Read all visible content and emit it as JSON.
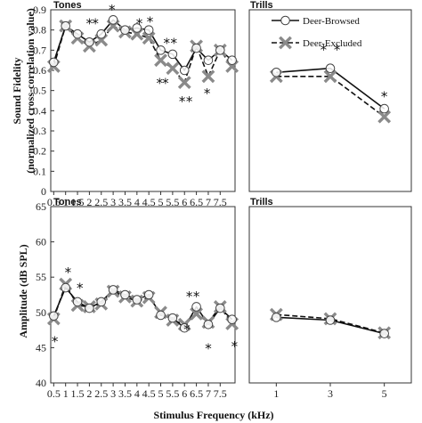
{
  "figure": {
    "ylabel_top": "Sound Fidelity\n(normalized cross-correlation value)",
    "ylabel_bottom": "Amplitude (dB SPL)",
    "xlabel": "Stimulus Frequency (kHz)"
  },
  "legend": {
    "browsed": "Deer-Browsed",
    "excluded": "Deer-Excluded"
  },
  "chart_data": [
    {
      "panel": "top-left",
      "type": "line",
      "title": "Tones",
      "xlim": [
        0.375,
        8.125
      ],
      "ylim": [
        0,
        0.9
      ],
      "ticks_x": [
        0.5,
        1,
        1.5,
        2,
        2.5,
        3,
        3.5,
        4,
        4.5,
        5,
        5.5,
        6,
        6.5,
        7,
        7.5
      ],
      "tick_labels_x": [
        "0.5",
        "1",
        "1.5",
        "2",
        "2.5",
        "3",
        "3.5",
        "4",
        "4.5",
        "5",
        "5.5",
        "6",
        "6.5",
        "7",
        "7.5"
      ],
      "ticks_y": [
        0,
        0.1,
        0.2,
        0.3,
        0.4,
        0.5,
        0.6,
        0.7,
        0.8,
        0.9
      ],
      "tick_labels_y": [
        "0",
        "0.1",
        "0.2",
        "0.3",
        "0.4",
        "0.5",
        "0.6",
        "0.7",
        "0.8",
        "0.9"
      ],
      "x": [
        0.5,
        1,
        1.5,
        2,
        2.5,
        3,
        3.5,
        4,
        4.5,
        5,
        5.5,
        6,
        6.5,
        7,
        7.5,
        8
      ],
      "series": [
        {
          "name": "Deer-Browsed",
          "values": [
            0.64,
            0.82,
            0.78,
            0.74,
            0.78,
            0.85,
            0.8,
            0.81,
            0.8,
            0.7,
            0.68,
            0.6,
            0.71,
            0.65,
            0.7,
            0.65
          ]
        },
        {
          "name": "Deer-Excluded",
          "values": [
            0.62,
            0.82,
            0.76,
            0.72,
            0.75,
            0.82,
            0.79,
            0.78,
            0.76,
            0.65,
            0.61,
            0.54,
            0.72,
            0.57,
            0.7,
            0.62
          ]
        }
      ],
      "annotations": [
        {
          "text": "*",
          "x": 2.0,
          "y": 0.835
        },
        {
          "text": "*",
          "x": 2.25,
          "y": 0.835
        },
        {
          "text": "*",
          "x": 2.95,
          "y": 0.905
        },
        {
          "text": "*",
          "x": 4.1,
          "y": 0.835
        },
        {
          "text": "*",
          "x": 4.55,
          "y": 0.845
        },
        {
          "text": "*",
          "x": 5.25,
          "y": 0.74
        },
        {
          "text": "*",
          "x": 5.55,
          "y": 0.74
        },
        {
          "text": "*",
          "x": 4.95,
          "y": 0.54
        },
        {
          "text": "*",
          "x": 5.2,
          "y": 0.54
        },
        {
          "text": "*",
          "x": 5.9,
          "y": 0.45
        },
        {
          "text": "*",
          "x": 6.2,
          "y": 0.45
        },
        {
          "text": "*",
          "x": 6.95,
          "y": 0.49
        }
      ]
    },
    {
      "panel": "top-right",
      "type": "line",
      "title": "Trills",
      "xlim": [
        0,
        6
      ],
      "ylim": [
        0,
        0.9
      ],
      "x": [
        1,
        3,
        5
      ],
      "series": [
        {
          "name": "Deer-Browsed",
          "values": [
            0.59,
            0.61,
            0.41
          ]
        },
        {
          "name": "Deer-Excluded",
          "values": [
            0.57,
            0.57,
            0.37
          ]
        }
      ],
      "annotations": [
        {
          "text": "*",
          "x": 2.75,
          "y": 0.705
        },
        {
          "text": "*",
          "x": 3.25,
          "y": 0.705
        },
        {
          "text": "*",
          "x": 5.0,
          "y": 0.475
        }
      ]
    },
    {
      "panel": "bottom-left",
      "type": "line",
      "title": "Tones",
      "xlim": [
        0.375,
        8.125
      ],
      "ylim": [
        40,
        65
      ],
      "ticks_x": [
        0.5,
        1,
        1.5,
        2,
        2.5,
        3,
        3.5,
        4,
        4.5,
        5,
        5.5,
        6,
        6.5,
        7,
        7.5
      ],
      "tick_labels_x": [
        "0.5",
        "1",
        "1.5",
        "2",
        "2.5",
        "3",
        "3.5",
        "4",
        "4.5",
        "5",
        "5.5",
        "6",
        "6.5",
        "7",
        "7.5"
      ],
      "ticks_y": [
        40,
        45,
        50,
        55,
        60,
        65
      ],
      "tick_labels_y": [
        "40",
        "45",
        "50",
        "55",
        "60",
        "65"
      ],
      "x": [
        0.5,
        1,
        1.5,
        2,
        2.5,
        3,
        3.5,
        4,
        4.5,
        5,
        5.5,
        6,
        6.5,
        7,
        7.5,
        8
      ],
      "series": [
        {
          "name": "Deer-Browsed",
          "values": [
            49.5,
            53.5,
            51.5,
            50.6,
            51.5,
            53.2,
            52.5,
            51.8,
            52.5,
            49.6,
            49.2,
            47.8,
            50.8,
            48.3,
            50.6,
            49.0
          ]
        },
        {
          "name": "Deer-Excluded",
          "values": [
            49.1,
            54.0,
            51.0,
            50.8,
            51.2,
            53.0,
            52.2,
            51.6,
            52.1,
            50.0,
            48.9,
            48.3,
            49.8,
            48.6,
            50.8,
            48.4
          ]
        }
      ],
      "annotations": [
        {
          "text": "*",
          "x": 1.1,
          "y": 55.8
        },
        {
          "text": "*",
          "x": 1.6,
          "y": 53.6
        },
        {
          "text": "*",
          "x": 0.55,
          "y": 46.0
        },
        {
          "text": "*",
          "x": 6.2,
          "y": 52.4
        },
        {
          "text": "*",
          "x": 6.5,
          "y": 52.4
        },
        {
          "text": "*",
          "x": 6.1,
          "y": 47.7
        },
        {
          "text": "*",
          "x": 7.0,
          "y": 45.0
        },
        {
          "text": "*",
          "x": 8.1,
          "y": 45.3
        }
      ]
    },
    {
      "panel": "bottom-right",
      "type": "line",
      "title": "Trills",
      "xlim": [
        0,
        6
      ],
      "ylim": [
        40,
        65
      ],
      "ticks_x": [
        1,
        3,
        5
      ],
      "tick_labels_x": [
        "1",
        "3",
        "5"
      ],
      "x": [
        1,
        3,
        5
      ],
      "series": [
        {
          "name": "Deer-Browsed",
          "values": [
            49.3,
            48.9,
            47.0
          ]
        },
        {
          "name": "Deer-Excluded",
          "values": [
            49.7,
            49.1,
            47.1
          ]
        }
      ],
      "annotations": []
    }
  ]
}
